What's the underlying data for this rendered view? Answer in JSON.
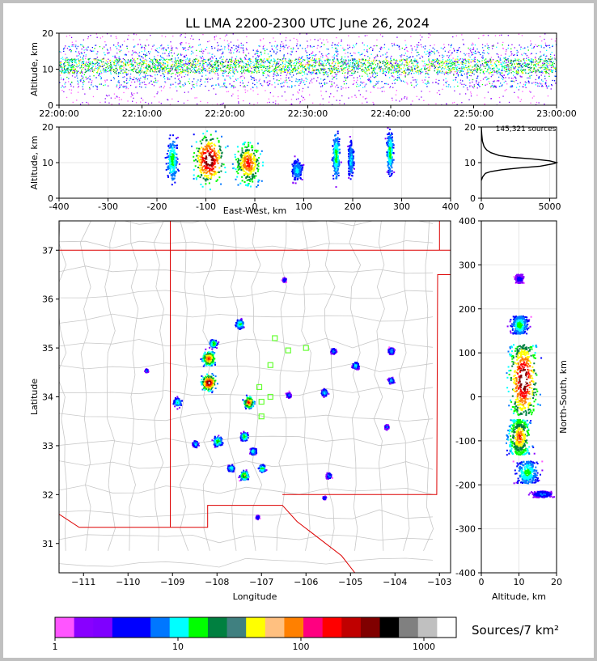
{
  "title": "LL LMA 2200-2300 UTC June 26, 2024",
  "source_count": "145,321 sources",
  "colorbar_label": "Sources/7 km²",
  "colors": {
    "colorbar": [
      "#ff55ff",
      "#8800ff",
      "#7f00ff",
      "#0000ff",
      "#0000ff",
      "#0077ff",
      "#00ffff",
      "#00ff00",
      "#008040",
      "#408080",
      "#ffff00",
      "#ffc080",
      "#ff8000",
      "#ff0080",
      "#ff0000",
      "#c00000",
      "#800000",
      "#000000",
      "#808080",
      "#c0c0c0",
      "#ffffff"
    ],
    "state_border": "#dd0000",
    "county": "#c8c8c8",
    "stations": "#66ff33"
  },
  "chart_data": [
    {
      "type": "heatmap",
      "name": "altitude-time",
      "xlabel": "",
      "ylabel": "Altitude, km",
      "xticks": [
        "22:00:00",
        "22:10:00",
        "22:20:00",
        "22:30:00",
        "22:40:00",
        "22:50:00",
        "23:00:00"
      ],
      "ylim": [
        0,
        20
      ],
      "yticks": [
        0,
        10,
        20
      ],
      "band_km": [
        5,
        17
      ],
      "core_km": [
        9,
        13
      ]
    },
    {
      "type": "heatmap",
      "name": "east-west-altitude",
      "xlabel": "East-West, km",
      "ylabel": "Altitude, km",
      "xlim": [
        -400,
        400
      ],
      "xticks": [
        -400,
        -300,
        -200,
        -100,
        0,
        100,
        200,
        300,
        400
      ],
      "ylim": [
        0,
        20
      ],
      "yticks": [
        0,
        10,
        20
      ],
      "clusters": [
        {
          "x": -170,
          "y": 11,
          "w": 30,
          "h": 16,
          "level": 0.5
        },
        {
          "x": -95,
          "y": 11,
          "w": 80,
          "h": 18,
          "level": 1.0
        },
        {
          "x": -15,
          "y": 10,
          "w": 70,
          "h": 16,
          "level": 0.85
        },
        {
          "x": 85,
          "y": 8,
          "w": 30,
          "h": 8,
          "level": 0.4
        },
        {
          "x": 165,
          "y": 12,
          "w": 20,
          "h": 18,
          "level": 0.5
        },
        {
          "x": 195,
          "y": 11,
          "w": 16,
          "h": 14,
          "level": 0.4
        },
        {
          "x": 275,
          "y": 13,
          "w": 18,
          "h": 16,
          "level": 0.5
        }
      ]
    },
    {
      "type": "line",
      "name": "altitude-histogram",
      "xlim": [
        0,
        5500
      ],
      "xticks": [
        0,
        5000
      ],
      "ylim": [
        0,
        20
      ],
      "yticks": [
        0,
        10,
        20
      ],
      "x": [
        0,
        100,
        300,
        700,
        1500,
        2800,
        4300,
        5300,
        5500,
        5000,
        3800,
        2200,
        1300,
        700,
        400,
        200,
        80,
        30,
        0
      ],
      "y": [
        5,
        6,
        7,
        7.5,
        8,
        8.5,
        9,
        9.7,
        10,
        10.5,
        11,
        11.5,
        12,
        12.8,
        13.5,
        14.5,
        16,
        18,
        20
      ]
    },
    {
      "type": "scatter",
      "name": "plan-view-map",
      "xlabel": "Longitude",
      "ylabel": "Latitude",
      "xlim": [
        -111.55,
        -102.75
      ],
      "ylim": [
        30.4,
        37.6
      ],
      "xticks": [
        -111,
        -110,
        -109,
        -108,
        -107,
        -106,
        -105,
        -104,
        -103
      ],
      "yticks": [
        31,
        32,
        33,
        34,
        35,
        36,
        37
      ],
      "cells": [
        {
          "lon": -108.2,
          "lat": 34.3,
          "r": 0.22,
          "level": 1.0
        },
        {
          "lon": -108.2,
          "lat": 34.8,
          "r": 0.2,
          "level": 0.85
        },
        {
          "lon": -108.1,
          "lat": 35.1,
          "r": 0.12,
          "level": 0.55
        },
        {
          "lon": -108.9,
          "lat": 33.9,
          "r": 0.13,
          "level": 0.45
        },
        {
          "lon": -107.3,
          "lat": 33.9,
          "r": 0.16,
          "level": 0.85
        },
        {
          "lon": -107.5,
          "lat": 35.5,
          "r": 0.13,
          "level": 0.5
        },
        {
          "lon": -108.0,
          "lat": 33.1,
          "r": 0.14,
          "level": 0.55
        },
        {
          "lon": -107.4,
          "lat": 33.2,
          "r": 0.12,
          "level": 0.55
        },
        {
          "lon": -107.2,
          "lat": 32.9,
          "r": 0.1,
          "level": 0.45
        },
        {
          "lon": -107.4,
          "lat": 32.4,
          "r": 0.13,
          "level": 0.65
        },
        {
          "lon": -107.0,
          "lat": 32.55,
          "r": 0.1,
          "level": 0.55
        },
        {
          "lon": -107.7,
          "lat": 32.55,
          "r": 0.1,
          "level": 0.45
        },
        {
          "lon": -108.5,
          "lat": 33.05,
          "r": 0.09,
          "level": 0.4
        },
        {
          "lon": -105.6,
          "lat": 34.1,
          "r": 0.1,
          "level": 0.4
        },
        {
          "lon": -104.9,
          "lat": 34.65,
          "r": 0.1,
          "level": 0.4
        },
        {
          "lon": -105.4,
          "lat": 34.95,
          "r": 0.08,
          "level": 0.35
        },
        {
          "lon": -104.1,
          "lat": 34.95,
          "r": 0.09,
          "level": 0.4
        },
        {
          "lon": -104.1,
          "lat": 34.35,
          "r": 0.09,
          "level": 0.4
        },
        {
          "lon": -104.2,
          "lat": 33.4,
          "r": 0.07,
          "level": 0.3
        },
        {
          "lon": -105.5,
          "lat": 32.4,
          "r": 0.08,
          "level": 0.35
        },
        {
          "lon": -106.4,
          "lat": 34.05,
          "r": 0.08,
          "level": 0.3
        },
        {
          "lon": -106.5,
          "lat": 36.4,
          "r": 0.06,
          "level": 0.3
        },
        {
          "lon": -109.6,
          "lat": 34.55,
          "r": 0.05,
          "level": 0.3
        },
        {
          "lon": -105.6,
          "lat": 31.95,
          "r": 0.05,
          "level": 0.3
        },
        {
          "lon": -107.1,
          "lat": 31.55,
          "r": 0.05,
          "level": 0.3
        }
      ],
      "stations": [
        [
          -106.7,
          35.2
        ],
        [
          -106.4,
          34.95
        ],
        [
          -106.0,
          35.0
        ],
        [
          -106.8,
          34.65
        ],
        [
          -107.05,
          34.2
        ],
        [
          -106.8,
          34.0
        ],
        [
          -107.0,
          33.9
        ],
        [
          -107.0,
          33.6
        ]
      ]
    },
    {
      "type": "heatmap",
      "name": "altitude-north-south",
      "xlabel": "Altitude, km",
      "ylabel": "North-South, km",
      "xlim": [
        0,
        20
      ],
      "xticks": [
        0,
        10,
        20
      ],
      "ylim": [
        -400,
        400
      ],
      "yticks": [
        -400,
        -300,
        -200,
        -100,
        0,
        100,
        200,
        300,
        400
      ],
      "clusters": [
        {
          "y": 270,
          "x": 10,
          "h": 20,
          "w": 3,
          "level": 0.25
        },
        {
          "y": 165,
          "x": 10,
          "h": 40,
          "w": 6,
          "level": 0.5
        },
        {
          "y": 40,
          "x": 11,
          "h": 160,
          "w": 10,
          "level": 1.0
        },
        {
          "y": -90,
          "x": 10,
          "h": 80,
          "w": 8,
          "level": 0.8
        },
        {
          "y": -170,
          "x": 12,
          "h": 50,
          "w": 8,
          "level": 0.5
        },
        {
          "y": -220,
          "x": 16,
          "h": 14,
          "w": 8,
          "level": 0.3
        }
      ]
    },
    {
      "type": "heatmap",
      "name": "colorbar",
      "xticks": [
        "1",
        "10",
        "100",
        "1000"
      ],
      "label": "Sources/7 km²"
    }
  ]
}
